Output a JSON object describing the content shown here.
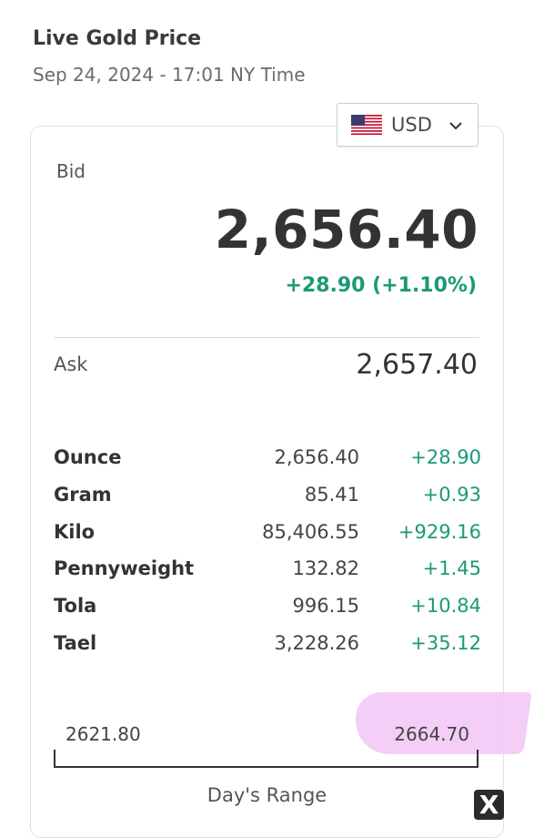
{
  "header": {
    "title": "Live Gold Price",
    "subtitle": "Sep 24, 2024 - 17:01 NY Time"
  },
  "currency": {
    "selected": "USD",
    "flag_icon": "us-flag-icon"
  },
  "bid": {
    "label": "Bid",
    "value": "2,656.40",
    "change": "+28.90 (+1.10%)"
  },
  "ask": {
    "label": "Ask",
    "value": "2,657.40"
  },
  "units": [
    {
      "name": "Ounce",
      "price": "2,656.40",
      "change": "+28.90"
    },
    {
      "name": "Gram",
      "price": "85.41",
      "change": "+0.93"
    },
    {
      "name": "Kilo",
      "price": "85,406.55",
      "change": "+929.16"
    },
    {
      "name": "Pennyweight",
      "price": "132.82",
      "change": "+1.45"
    },
    {
      "name": "Tola",
      "price": "996.15",
      "change": "+10.84"
    },
    {
      "name": "Tael",
      "price": "3,228.26",
      "change": "+35.12"
    }
  ],
  "range": {
    "low": "2621.80",
    "high": "2664.70",
    "label": "Day's Range"
  },
  "close_label": "X",
  "colors": {
    "positive": "#1a9a76",
    "highlight": "#f2c6f6"
  }
}
